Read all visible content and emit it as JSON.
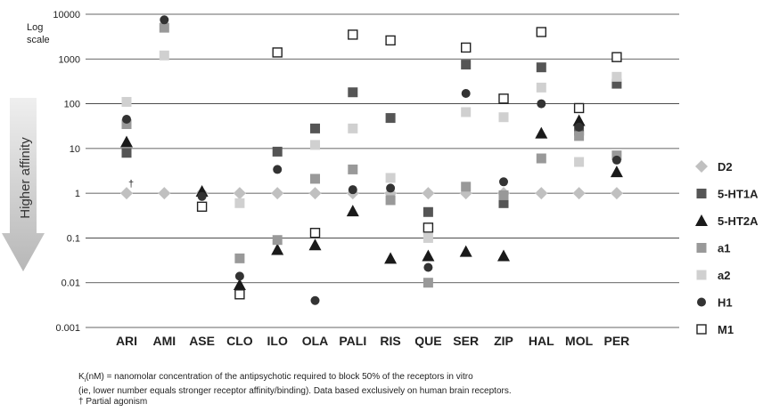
{
  "chart_data": {
    "type": "scatter",
    "yscale": "log",
    "ylim": [
      0.001,
      10000
    ],
    "yticks": [
      "10000",
      "1000",
      "100",
      "10",
      "1",
      "0.1",
      "0.01",
      "0.001"
    ],
    "grid": "horizontal",
    "legend_position": "right",
    "scale_note": [
      "Log",
      "scale"
    ],
    "arrow_label": "Higher affinity",
    "categories": [
      "ARI",
      "AMI",
      "ASE",
      "CLO",
      "ILO",
      "OLA",
      "PALI",
      "RIS",
      "QUE",
      "SER",
      "ZIP",
      "HAL",
      "MOL",
      "PER"
    ],
    "series": [
      {
        "name": "D2",
        "marker": "diamond",
        "color": "#c0c0c0",
        "values": [
          1,
          1,
          1,
          1,
          1,
          1,
          1,
          1,
          1,
          1,
          1,
          1,
          1,
          1
        ]
      },
      {
        "name": "5-HT1A",
        "marker": "square",
        "color": "#555555",
        "values": [
          8,
          null,
          null,
          null,
          8.5,
          28,
          180,
          48,
          0.38,
          750,
          0.6,
          650,
          25,
          280
        ]
      },
      {
        "name": "5-HT2A",
        "marker": "triangle",
        "color": "#1a1a1a",
        "values": [
          14,
          null,
          1.1,
          0.009,
          0.055,
          0.07,
          0.4,
          0.035,
          0.04,
          0.05,
          0.04,
          22,
          42,
          3
        ]
      },
      {
        "name": "a1",
        "marker": "square",
        "color": "#999999",
        "values": [
          35,
          5000,
          null,
          0.035,
          0.09,
          2.1,
          3.4,
          0.7,
          0.01,
          1.4,
          0.9,
          6,
          19,
          7
        ]
      },
      {
        "name": "a2",
        "marker": "square",
        "color": "#d0d0d0",
        "values": [
          110,
          1200,
          null,
          0.6,
          null,
          12,
          28,
          2.2,
          0.1,
          65,
          50,
          230,
          5,
          400
        ]
      },
      {
        "name": "H1",
        "marker": "circle",
        "color": "#333333",
        "values": [
          45,
          7500,
          0.85,
          0.014,
          3.4,
          0.004,
          1.2,
          1.3,
          0.022,
          170,
          1.8,
          100,
          30,
          5.5
        ]
      },
      {
        "name": "M1",
        "marker": "open-square",
        "color": "#222222",
        "values": [
          null,
          null,
          0.5,
          0.0055,
          1400,
          0.13,
          3500,
          2600,
          0.17,
          1800,
          130,
          4000,
          80,
          1100
        ]
      }
    ],
    "annotations": [
      {
        "category": "ARI",
        "value": 1.4,
        "text": "†"
      }
    ]
  },
  "footnote": {
    "line1_k": "K",
    "line1_sub": "i",
    "line1_rest": "(nM) = nanomolar concentration of the antipsychotic required to block 50% of the receptors in vitro",
    "line2": "(ie, lower number equals stronger receptor affinity/binding). Data based exclusively on human brain receptors.",
    "line3": "† Partial agonism"
  }
}
